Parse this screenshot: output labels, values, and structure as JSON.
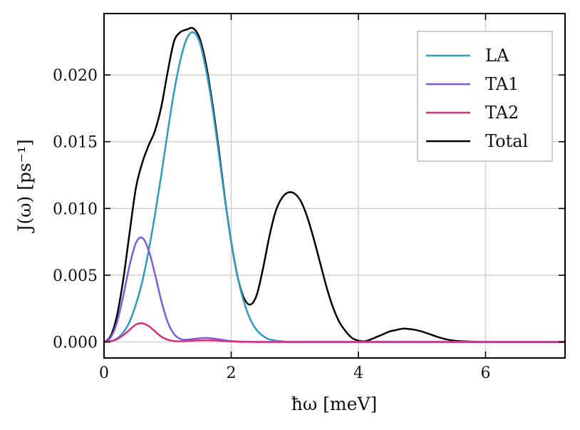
{
  "chart_data": {
    "type": "line",
    "title": "",
    "xlabel": "ħω [meV]",
    "ylabel": "J(ω)  [ps⁻¹]",
    "xlim": [
      0,
      7.25
    ],
    "ylim": [
      -0.0012,
      0.0246
    ],
    "xticks": [
      0,
      2,
      4,
      6
    ],
    "yticks": [
      0.0,
      0.005,
      0.01,
      0.015,
      0.02
    ],
    "x_tick_labels": [
      "0",
      "2",
      "4",
      "6"
    ],
    "y_tick_labels": [
      "0.000",
      "0.005",
      "0.010",
      "0.015",
      "0.020"
    ],
    "grid": true,
    "legend_position": "top-right",
    "series": [
      {
        "name": "LA",
        "color": "#2E9BC4",
        "x": [
          0,
          0.1,
          0.2,
          0.3,
          0.4,
          0.5,
          0.6,
          0.7,
          0.8,
          0.9,
          1.0,
          1.1,
          1.2,
          1.3,
          1.4,
          1.5,
          1.6,
          1.7,
          1.8,
          1.9,
          2.0,
          2.1,
          2.2,
          2.3,
          2.4,
          2.5,
          2.6,
          2.8,
          3.0,
          3.5,
          4.0,
          5.0,
          6.0,
          7.25
        ],
        "y": [
          0.0,
          5e-05,
          0.00025,
          0.0007,
          0.0015,
          0.0028,
          0.0045,
          0.0068,
          0.0095,
          0.0125,
          0.0157,
          0.0187,
          0.0211,
          0.0227,
          0.0232,
          0.0225,
          0.0205,
          0.0177,
          0.0143,
          0.0107,
          0.0075,
          0.0049,
          0.003,
          0.0017,
          0.0009,
          0.00045,
          0.0002,
          4e-05,
          0.0,
          0.0,
          0.0,
          0.0,
          0.0,
          0.0
        ]
      },
      {
        "name": "TA1",
        "color": "#7B5CE6",
        "x": [
          0,
          0.1,
          0.2,
          0.3,
          0.4,
          0.5,
          0.6,
          0.7,
          0.8,
          0.9,
          1.0,
          1.1,
          1.2,
          1.3,
          1.4,
          1.5,
          1.6,
          1.7,
          1.8,
          1.9,
          2.0,
          2.2,
          2.5,
          3.0,
          4.0,
          5.0,
          6.0,
          7.25
        ],
        "y": [
          0.0,
          0.0003,
          0.0014,
          0.0034,
          0.0057,
          0.0074,
          0.0078,
          0.0069,
          0.0051,
          0.0031,
          0.0015,
          0.0006,
          0.00022,
          0.00017,
          0.00022,
          0.00028,
          0.0003,
          0.00027,
          0.0002,
          0.00013,
          7e-05,
          2e-05,
          0.0,
          0.0,
          0.0,
          0.0,
          0.0,
          0.0
        ]
      },
      {
        "name": "TA2",
        "color": "#D8307F",
        "x": [
          0,
          0.1,
          0.2,
          0.3,
          0.4,
          0.5,
          0.6,
          0.7,
          0.8,
          0.9,
          1.0,
          1.1,
          1.2,
          1.3,
          1.4,
          1.5,
          1.6,
          1.7,
          1.8,
          1.9,
          2.0,
          2.2,
          2.5,
          3.0,
          4.0,
          5.0,
          6.0,
          7.25
        ],
        "y": [
          0.0,
          5e-05,
          0.0002,
          0.0005,
          0.0009,
          0.0013,
          0.0014,
          0.0012,
          0.0008,
          0.0004,
          0.00017,
          7e-05,
          5e-05,
          7e-05,
          0.0001,
          0.00012,
          0.00013,
          0.00012,
          0.0001,
          7e-05,
          4e-05,
          1e-05,
          0.0,
          0.0,
          0.0,
          0.0,
          0.0,
          0.0
        ]
      },
      {
        "name": "Total",
        "color": "#000000",
        "x": [
          0,
          0.1,
          0.2,
          0.3,
          0.4,
          0.5,
          0.6,
          0.7,
          0.8,
          0.9,
          1.0,
          1.1,
          1.2,
          1.3,
          1.4,
          1.5,
          1.6,
          1.7,
          1.8,
          1.9,
          2.0,
          2.1,
          2.2,
          2.3,
          2.4,
          2.5,
          2.6,
          2.7,
          2.8,
          2.9,
          3.0,
          3.1,
          3.2,
          3.3,
          3.4,
          3.5,
          3.6,
          3.7,
          3.8,
          3.9,
          4.0,
          4.1,
          4.2,
          4.3,
          4.4,
          4.5,
          4.6,
          4.7,
          4.8,
          4.9,
          5.0,
          5.1,
          5.2,
          5.3,
          5.4,
          5.5,
          5.6,
          5.8,
          6.0,
          6.5,
          7.25
        ],
        "y": [
          0.0,
          0.0004,
          0.0019,
          0.0046,
          0.0081,
          0.0115,
          0.0134,
          0.0147,
          0.0158,
          0.0176,
          0.0202,
          0.0225,
          0.0232,
          0.0234,
          0.0235,
          0.0228,
          0.0209,
          0.018,
          0.0146,
          0.0108,
          0.0075,
          0.0049,
          0.0033,
          0.0028,
          0.0035,
          0.0055,
          0.0079,
          0.0098,
          0.0108,
          0.0112,
          0.0111,
          0.0105,
          0.0093,
          0.0077,
          0.0059,
          0.0041,
          0.0026,
          0.0015,
          0.0008,
          0.0003,
          0.0001,
          5e-05,
          0.0002,
          0.0004,
          0.0006,
          0.0008,
          0.0009,
          0.001,
          0.00097,
          0.0009,
          0.00078,
          0.00062,
          0.00045,
          0.0003,
          0.00018,
          0.0001,
          6e-05,
          2e-05,
          0.0,
          0.0,
          0.0
        ]
      }
    ]
  }
}
